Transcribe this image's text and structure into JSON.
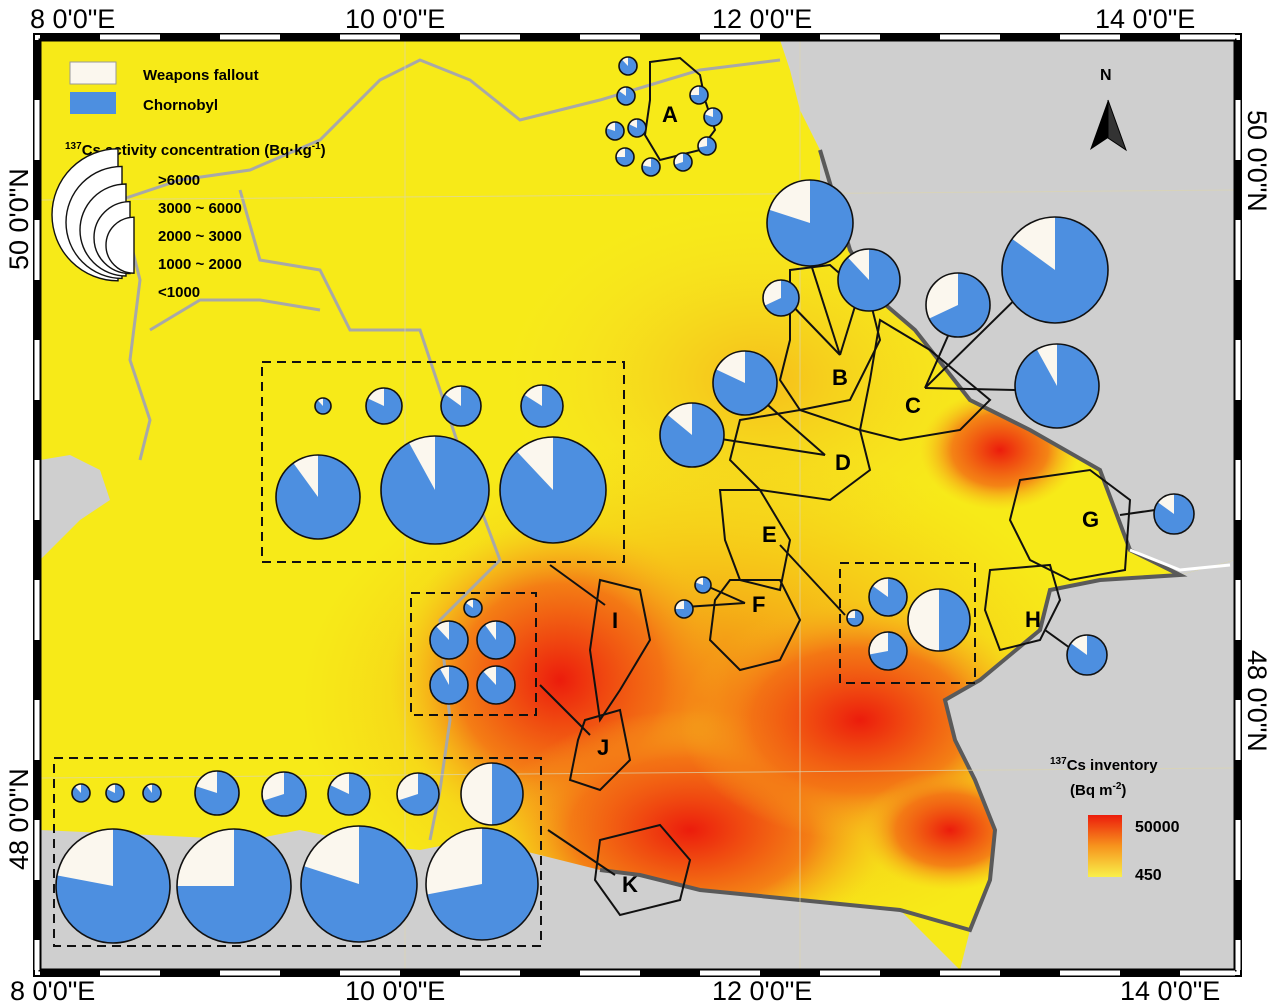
{
  "axes": {
    "top": [
      "8 0'0\"E",
      "10 0'0\"E",
      "12 0'0\"E",
      "14 0'0\"E"
    ],
    "bottom": [
      "8 0'0\"E",
      "10 0'0\"E",
      "12 0'0\"E",
      "14 0'0\"E"
    ],
    "left": [
      "50 0'0\"N",
      "48 0'0\"N"
    ],
    "right": [
      "50 0'0\"N",
      "48 0'0\"N"
    ]
  },
  "legend": {
    "weapons_label": "Weapons fallout",
    "chornobyl_label": "Chornobyl",
    "concentration_title": "137Cs activity concentration (Bq·kg-1)",
    "classes": [
      ">6000",
      "3000 ~ 6000",
      "2000 ~ 3000",
      "1000 ~ 2000",
      "<1000"
    ]
  },
  "inventory_legend": {
    "title_line1": "137Cs inventory",
    "title_line2": "(Bq m-2)",
    "max": "50000",
    "min": "450"
  },
  "north_label": "N",
  "region_labels": [
    "A",
    "B",
    "C",
    "D",
    "E",
    "F",
    "G",
    "H",
    "I",
    "J",
    "K"
  ],
  "colors": {
    "weapons_fallout": "#fbf7ee",
    "chornobyl": "#4d8fe0",
    "inventory_high": "#ec1c0c",
    "inventory_low": "#f7f22a",
    "outside_area": "#cfcfcf"
  },
  "pie_data": {
    "A": [
      0.12,
      0.15,
      0.18,
      0.2,
      0.25,
      0.22,
      0.3,
      0.28,
      0.2,
      0.25
    ],
    "B": [
      0.2,
      0.12,
      0.32,
      0.18
    ],
    "C": [
      0.32,
      0.15,
      0.08,
      0.1
    ],
    "D": [
      0.14,
      0.12
    ],
    "E": [
      0.25,
      0.15,
      0.28,
      0.5
    ],
    "F": [
      0.2,
      0.25
    ],
    "G": [
      0.15
    ],
    "H": [
      0.15
    ],
    "I_row1": [
      0.12,
      0.18,
      0.15,
      0.16
    ],
    "I_row2": [
      0.1,
      0.08,
      0.12
    ],
    "J": [
      0.15,
      0.12,
      0.1,
      0.08,
      0.12
    ],
    "K_row1": [
      0.12,
      0.18,
      0.1,
      0.2,
      0.3,
      0.18,
      0.3,
      0.5
    ],
    "K_row2": [
      0.22,
      0.25,
      0.2,
      0.28
    ]
  }
}
